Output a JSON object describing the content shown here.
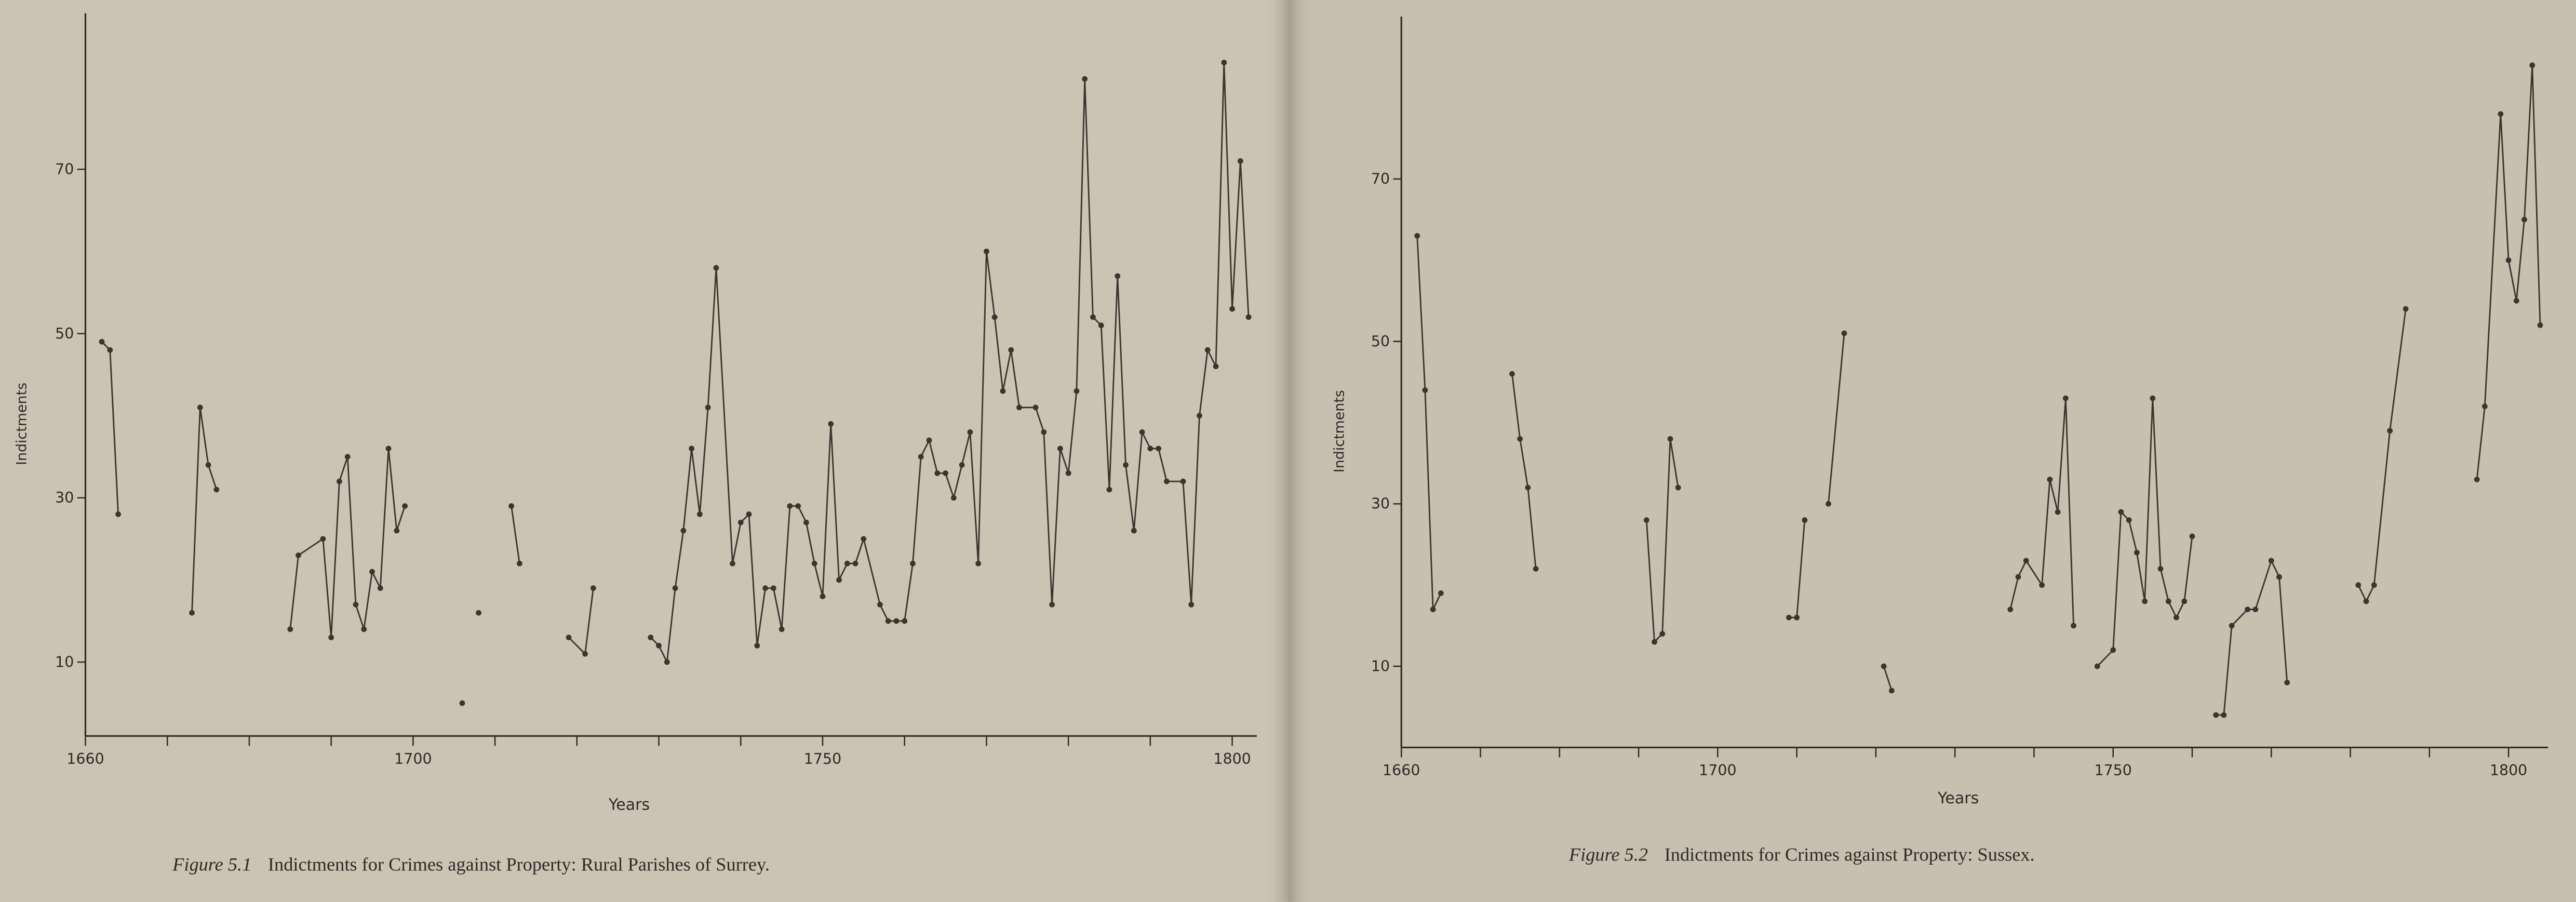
{
  "chart_data": [
    {
      "type": "line",
      "caption_label": "Figure 5.1",
      "caption": "Indictments for Crimes against Property: Rural Parishes of Surrey.",
      "x_label": "Years",
      "y_label": "Indictments",
      "color": "#3b352f",
      "xlim": [
        1660,
        1803
      ],
      "ylim": [
        1,
        89
      ],
      "xticks": [
        1660,
        1700,
        1750,
        1800
      ],
      "minor_xticks": [
        1670,
        1680,
        1690,
        1710,
        1720,
        1730,
        1740,
        1760,
        1770,
        1780,
        1790
      ],
      "yticks": [
        10,
        30,
        50,
        70
      ],
      "x": [
        1662,
        1663,
        1664,
        null,
        1673,
        1674,
        1675,
        1676,
        null,
        1685,
        1686,
        1689,
        1690,
        1691,
        1692,
        1693,
        1694,
        1695,
        1696,
        1697,
        1698,
        1699,
        null,
        1706,
        null,
        1708,
        null,
        1712,
        1713,
        null,
        1719,
        1721,
        1722,
        null,
        1729,
        1730,
        1731,
        1732,
        1733,
        1734,
        1735,
        1736,
        1737,
        1739,
        1740,
        1741,
        1742,
        1743,
        1744,
        1745,
        1746,
        1747,
        1748,
        1749,
        1750,
        1751,
        1752,
        1753,
        1754,
        1755,
        1757,
        1758,
        1759,
        1760,
        1761,
        1762,
        1763,
        1764,
        1765,
        1766,
        1767,
        1768,
        1769,
        1770,
        1771,
        1772,
        1773,
        1774,
        1776,
        1777,
        1778,
        1779,
        1780,
        1781,
        1782,
        1783,
        1784,
        1785,
        1786,
        1787,
        1788,
        1789,
        1790,
        1791,
        1792,
        1794,
        1795,
        1796,
        1797,
        1798,
        1799,
        1800,
        1801,
        1802
      ],
      "values": [
        49,
        48,
        28,
        null,
        16,
        41,
        34,
        31,
        null,
        14,
        23,
        25,
        13,
        32,
        35,
        17,
        14,
        21,
        19,
        36,
        26,
        29,
        null,
        5,
        null,
        16,
        null,
        29,
        22,
        null,
        13,
        11,
        19,
        null,
        13,
        12,
        10,
        19,
        26,
        36,
        28,
        41,
        58,
        22,
        27,
        28,
        12,
        19,
        19,
        14,
        29,
        29,
        27,
        22,
        18,
        39,
        20,
        22,
        22,
        25,
        17,
        15,
        15,
        15,
        22,
        35,
        37,
        33,
        33,
        30,
        34,
        38,
        22,
        60,
        52,
        43,
        48,
        41,
        41,
        38,
        17,
        36,
        33,
        43,
        81,
        52,
        51,
        31,
        57,
        34,
        26,
        38,
        36,
        36,
        32,
        32,
        17,
        40,
        48,
        46,
        83,
        53,
        71,
        52
      ]
    },
    {
      "type": "line",
      "caption_label": "Figure 5.2",
      "caption": "Indictments for Crimes against Property: Sussex.",
      "x_label": "Years",
      "y_label": "Indictments",
      "color": "#3b352f",
      "xlim": [
        1660,
        1805
      ],
      "ylim": [
        0,
        90
      ],
      "xticks": [
        1660,
        1700,
        1750,
        1800
      ],
      "minor_xticks": [
        1670,
        1680,
        1690,
        1710,
        1720,
        1730,
        1740,
        1760,
        1770,
        1780,
        1790
      ],
      "yticks": [
        10,
        30,
        50,
        70
      ],
      "x": [
        1662,
        1663,
        1664,
        1665,
        null,
        1674,
        1675,
        1676,
        1677,
        null,
        1691,
        1692,
        1693,
        1694,
        1695,
        null,
        1709,
        1710,
        1711,
        null,
        1714,
        1716,
        null,
        1721,
        1722,
        null,
        1737,
        1738,
        1739,
        1741,
        1742,
        1743,
        1744,
        1745,
        null,
        1748,
        1750,
        1751,
        1752,
        1753,
        1754,
        1755,
        1756,
        1757,
        1758,
        1759,
        1760,
        null,
        1763,
        1764,
        1765,
        1767,
        1768,
        1770,
        1771,
        1772,
        null,
        1781,
        1782,
        1783,
        1785,
        1787,
        null,
        1796,
        1797,
        1799,
        1800,
        1801,
        1802,
        1803,
        1804
      ],
      "values": [
        63,
        44,
        17,
        19,
        null,
        46,
        38,
        32,
        22,
        null,
        28,
        13,
        14,
        38,
        32,
        null,
        16,
        16,
        28,
        null,
        30,
        51,
        null,
        10,
        7,
        null,
        17,
        21,
        23,
        20,
        33,
        29,
        43,
        15,
        null,
        10,
        12,
        29,
        28,
        24,
        18,
        43,
        22,
        18,
        16,
        18,
        26,
        null,
        4,
        4,
        15,
        17,
        17,
        23,
        21,
        8,
        null,
        20,
        18,
        20,
        39,
        54,
        null,
        33,
        42,
        78,
        60,
        55,
        65,
        84,
        52
      ]
    }
  ]
}
